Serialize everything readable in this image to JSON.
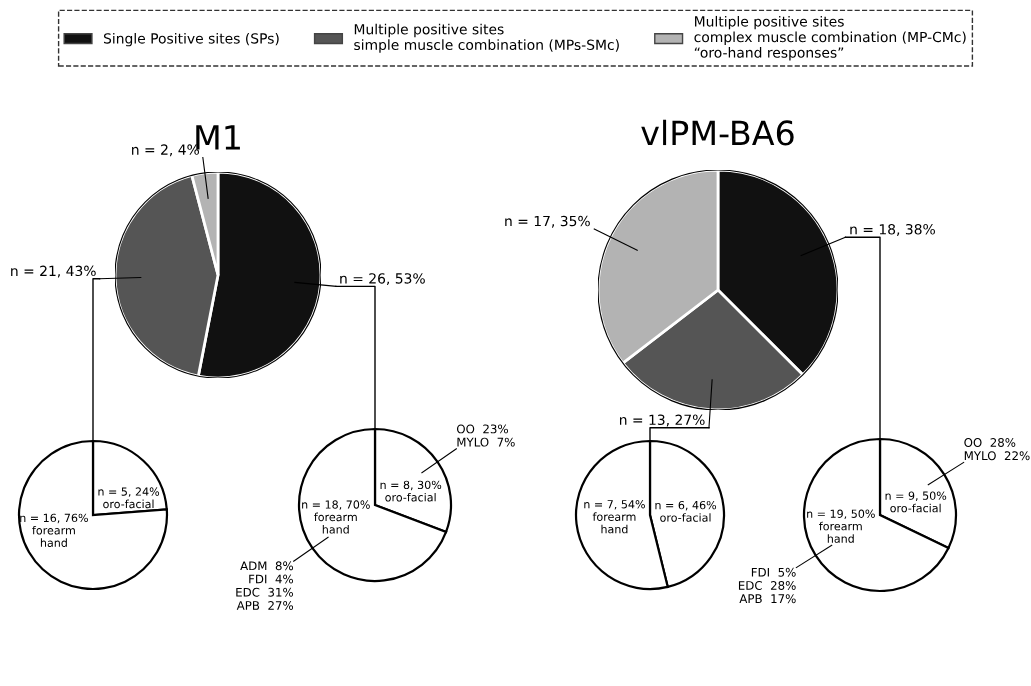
{
  "chart_data": [
    {
      "type": "pie",
      "title": "M1",
      "legend": "top",
      "categories": [
        "Single Positive sites (SPs)",
        "Multiple positive sites\nsimple muscle combination (MPs-SMc)",
        "Multiple positive sites\ncomplex muscle combination (MP-CMc)\n“oro-hand responses”"
      ],
      "values": [
        26,
        21,
        2
      ],
      "colors": [
        "#111111",
        "#555555",
        "#b3b3b3"
      ],
      "value_labels": [
        "n = 26, 53%",
        "n = 21, 43%",
        "n = 2, 4%"
      ]
    },
    {
      "type": "pie",
      "title": "vlPM-BA6",
      "categories": [
        null,
        null,
        null
      ],
      "values": [
        18,
        13,
        17
      ],
      "colors": [
        "#111111",
        "#555555",
        "#b3b3b3"
      ],
      "value_labels": [
        "n = 18, 38%",
        "n = 13, 27%",
        "n = 17, 35%"
      ]
    },
    {
      "type": "pie",
      "categories": [
        "oro-facial",
        "forearm\nhand"
      ],
      "values": [
        5,
        16
      ],
      "colors": [
        "#ffffff",
        "#ffffff"
      ],
      "value_labels": [
        "n = 5, 24%",
        "n = 16, 76%"
      ]
    },
    {
      "type": "pie",
      "categories": [
        "oro-facial",
        "forearm\nhand"
      ],
      "values": [
        8,
        18
      ],
      "colors": [
        "#ffffff",
        "#ffffff"
      ],
      "value_labels": [
        "n = 8, 30%",
        "n = 18, 70%"
      ],
      "annotations": [
        "OO  23%\nMYLO  7%",
        "ADM  8%\nFDI  4%\nEDC  31%\nAPB  27%"
      ]
    },
    {
      "type": "pie",
      "categories": [
        "oro-facial",
        "forearm\nhand"
      ],
      "values": [
        6,
        7
      ],
      "colors": [
        "#ffffff",
        "#ffffff"
      ],
      "value_labels": [
        "n = 6, 46%",
        "n = 7, 54%"
      ]
    },
    {
      "type": "pie",
      "categories": [
        "oro-facial",
        "forearm\nhand"
      ],
      "values": [
        9,
        19
      ],
      "colors": [
        "#ffffff",
        "#ffffff"
      ],
      "value_labels": [
        "n = 9, 50%",
        "n = 19, 50%"
      ],
      "annotations": [
        "OO  28%\nMYLO  22%",
        "FDI  5%\nEDC  28%\nAPB  17%"
      ]
    }
  ]
}
